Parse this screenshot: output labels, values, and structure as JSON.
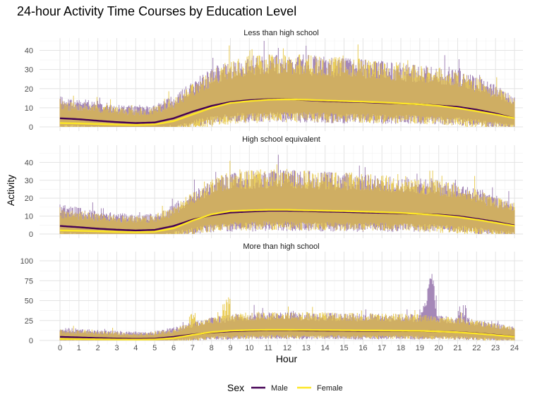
{
  "chart_data": {
    "type": "line",
    "title": "24-hour Activity Time Courses by Education Level",
    "xlabel": "Hour",
    "ylabel": "Activity",
    "xlim": [
      0,
      24
    ],
    "x_ticks": [
      "0",
      "1",
      "2",
      "3",
      "4",
      "5",
      "6",
      "7",
      "8",
      "9",
      "10",
      "11",
      "12",
      "13",
      "14",
      "15",
      "16",
      "17",
      "18",
      "19",
      "20",
      "21",
      "22",
      "23",
      "24"
    ],
    "grid": true,
    "legend": {
      "title": "Sex",
      "placement": "bottom",
      "entries": [
        {
          "label": "Male",
          "color": "#440154"
        },
        {
          "label": "Female",
          "color": "#fde725"
        }
      ]
    },
    "colors": {
      "male_line": "#440154",
      "female_line": "#fde725",
      "male_band": "#9b7bb0",
      "female_band": "#e8c94a",
      "overlap_band": "#cfae63"
    },
    "panels": [
      {
        "strip": "Less than high school",
        "ylim": [
          0,
          45
        ],
        "y_ticks": [
          "0",
          "10",
          "20",
          "30",
          "40"
        ],
        "hours": [
          0,
          1,
          2,
          3,
          4,
          5,
          6,
          7,
          8,
          9,
          10,
          11,
          12,
          13,
          14,
          15,
          16,
          17,
          18,
          19,
          20,
          21,
          22,
          23,
          24
        ],
        "series": [
          {
            "name": "Male",
            "mean": [
              4.5,
              4.0,
              3.2,
              2.5,
              2.0,
              2.3,
              4.5,
              8.0,
              11.0,
              13.0,
              14.0,
              14.5,
              14.5,
              14.0,
              13.5,
              13.2,
              13.0,
              12.5,
              12.2,
              11.8,
              11.2,
              10.5,
              9.0,
              7.0,
              4.5
            ]
          },
          {
            "name": "Female",
            "mean": [
              2.0,
              1.8,
              1.5,
              1.2,
              1.0,
              1.3,
              3.0,
              6.5,
              10.0,
              12.5,
              13.5,
              14.2,
              14.4,
              14.2,
              13.8,
              13.5,
              13.2,
              12.8,
              12.3,
              11.8,
              11.0,
              9.8,
              8.2,
              6.5,
              4.5
            ]
          }
        ]
      },
      {
        "strip": "High school equivalent",
        "ylim": [
          0,
          48
        ],
        "y_ticks": [
          "0",
          "10",
          "20",
          "30",
          "40"
        ],
        "hours": [
          0,
          1,
          2,
          3,
          4,
          5,
          6,
          7,
          8,
          9,
          10,
          11,
          12,
          13,
          14,
          15,
          16,
          17,
          18,
          19,
          20,
          21,
          22,
          23,
          24
        ],
        "series": [
          {
            "name": "Male",
            "mean": [
              4.5,
              3.8,
              3.0,
              2.4,
              2.0,
              2.3,
              4.5,
              8.0,
              10.5,
              12.0,
              12.5,
              13.0,
              13.0,
              12.8,
              12.5,
              12.3,
              12.0,
              11.8,
              11.5,
              11.2,
              10.8,
              10.0,
              8.5,
              6.8,
              4.8
            ]
          },
          {
            "name": "Female",
            "mean": [
              2.0,
              1.8,
              1.5,
              1.2,
              1.0,
              1.3,
              3.2,
              7.5,
              11.0,
              12.8,
              13.2,
              13.5,
              13.5,
              13.2,
              13.0,
              12.8,
              12.5,
              12.2,
              11.8,
              11.2,
              10.5,
              9.5,
              8.0,
              6.3,
              4.5
            ]
          }
        ]
      },
      {
        "strip": "More than high school",
        "ylim": [
          0,
          108
        ],
        "y_ticks": [
          "0",
          "25",
          "50",
          "75",
          "100"
        ],
        "hours": [
          0,
          1,
          2,
          3,
          4,
          5,
          6,
          7,
          8,
          9,
          10,
          11,
          12,
          13,
          14,
          15,
          16,
          17,
          18,
          19,
          20,
          21,
          22,
          23,
          24
        ],
        "series": [
          {
            "name": "Male",
            "mean": [
              4.5,
              3.8,
              3.0,
              2.4,
              2.0,
              2.3,
              4.5,
              7.5,
              10.0,
              11.5,
              12.3,
              12.8,
              12.8,
              12.5,
              12.3,
              12.2,
              12.0,
              12.0,
              12.0,
              11.8,
              11.3,
              10.5,
              9.0,
              7.0,
              4.8
            ]
          },
          {
            "name": "Female",
            "mean": [
              2.0,
              1.8,
              1.5,
              1.2,
              1.0,
              1.3,
              3.0,
              7.0,
              10.5,
              12.3,
              13.0,
              13.3,
              13.3,
              13.2,
              13.0,
              12.8,
              12.6,
              12.5,
              12.3,
              12.0,
              11.3,
              10.3,
              8.7,
              6.7,
              4.6
            ]
          }
        ]
      }
    ]
  }
}
